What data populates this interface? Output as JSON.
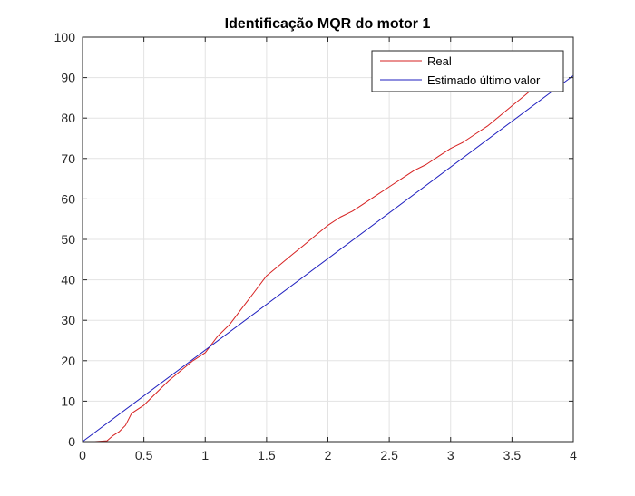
{
  "chart_data": {
    "type": "line",
    "title": "Identificação MQR do motor 1",
    "xlabel": "",
    "ylabel": "",
    "xlim": [
      0,
      4
    ],
    "ylim": [
      0,
      100
    ],
    "xticks": [
      0,
      0.5,
      1,
      1.5,
      2,
      2.5,
      3,
      3.5,
      4
    ],
    "xtick_labels": [
      "0",
      "0.5",
      "1",
      "1.5",
      "2",
      "2.5",
      "3",
      "3.5",
      "4"
    ],
    "yticks": [
      0,
      10,
      20,
      30,
      40,
      50,
      60,
      70,
      80,
      90,
      100
    ],
    "ytick_labels": [
      "0",
      "10",
      "20",
      "30",
      "40",
      "50",
      "60",
      "70",
      "80",
      "90",
      "100"
    ],
    "grid": true,
    "legend_position": "top-right",
    "series": [
      {
        "name": "Real",
        "color": "#d62020",
        "x": [
          0,
          0.1,
          0.2,
          0.25,
          0.3,
          0.35,
          0.4,
          0.45,
          0.5,
          0.6,
          0.7,
          0.8,
          0.9,
          1.0,
          1.1,
          1.2,
          1.25,
          1.3,
          1.35,
          1.4,
          1.5,
          1.6,
          1.7,
          1.8,
          1.9,
          2.0,
          2.1,
          2.2,
          2.3,
          2.4,
          2.5,
          2.6,
          2.7,
          2.8,
          2.9,
          3.0,
          3.1,
          3.2,
          3.3,
          3.4,
          3.5,
          3.6,
          3.7,
          3.75
        ],
        "y": [
          0,
          0,
          0.2,
          1.5,
          2.5,
          4,
          7,
          8,
          9,
          12,
          15,
          17.5,
          20,
          22,
          26,
          29,
          31,
          33,
          35,
          37,
          41,
          43.5,
          46,
          48.5,
          51,
          53.5,
          55.5,
          57,
          59,
          61,
          63,
          65,
          67,
          68.5,
          70.5,
          72.5,
          74,
          76,
          78,
          80.5,
          83,
          85.5,
          88,
          90
        ]
      },
      {
        "name": "Estimado último valor",
        "color": "#1f1fbf",
        "x": [
          0,
          4
        ],
        "y": [
          0,
          90.5
        ]
      }
    ]
  }
}
